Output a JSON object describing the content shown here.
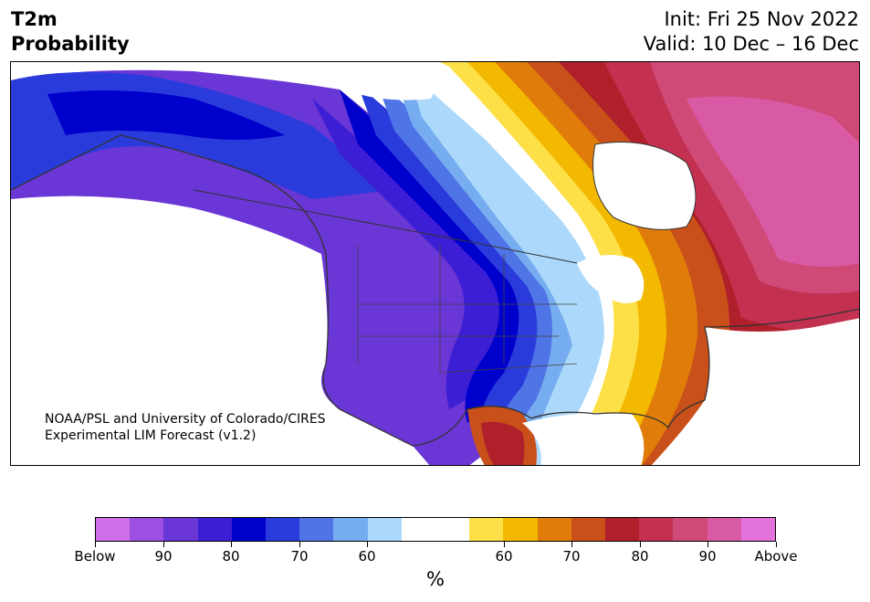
{
  "header": {
    "title_line1": "T2m",
    "title_line2": "Probability",
    "init_label": "Init: Fri 25 Nov 2022",
    "valid_label": "Valid: 10 Dec – 16 Dec"
  },
  "map": {
    "region": "North America",
    "credit_line1": "NOAA/PSL and University of Colorado/CIRES",
    "credit_line2": "Experimental LIM Forecast (v1.2)"
  },
  "colorbar": {
    "unit_label": "%",
    "below_colors": [
      "#d06ee8",
      "#9c4fe0",
      "#6a36d6",
      "#3c1fd4",
      "#0000cd",
      "#2a3bdc",
      "#4f74e6",
      "#76adf0",
      "#acd9fb"
    ],
    "above_colors": [
      "#fde047",
      "#f3b800",
      "#e07d0a",
      "#c9501a",
      "#b0202a",
      "#c33050",
      "#d04a78",
      "#d95aa4",
      "#e472dc"
    ],
    "tick_labels": [
      "Below",
      "90",
      "80",
      "70",
      "60",
      "60",
      "70",
      "80",
      "90",
      "Above"
    ]
  }
}
